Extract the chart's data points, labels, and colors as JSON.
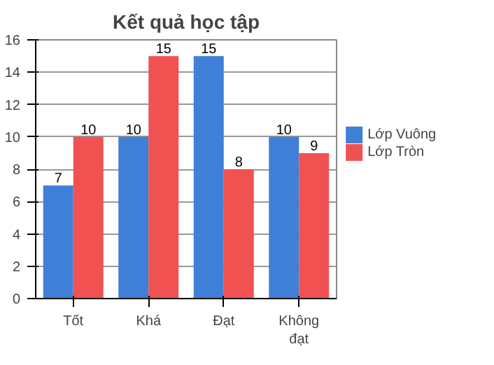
{
  "chart_data": {
    "type": "bar",
    "title": "Kết quả học tập",
    "categories": [
      "Tốt",
      "Khá",
      "Đạt",
      "Không đạt"
    ],
    "series": [
      {
        "name": "Lớp Vuông",
        "color": "#3f7fd8",
        "values": [
          7,
          10,
          15,
          10
        ]
      },
      {
        "name": "Lớp Tròn",
        "color": "#f05252",
        "values": [
          10,
          15,
          8,
          9
        ]
      }
    ],
    "ylim": [
      0,
      16
    ],
    "yticks": [
      0,
      2,
      4,
      6,
      8,
      10,
      12,
      14,
      16
    ],
    "grid": "y",
    "legend": "right",
    "data_labels": true
  }
}
